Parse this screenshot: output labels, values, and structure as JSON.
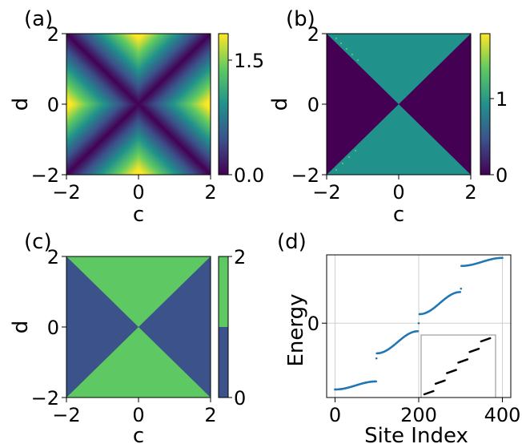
{
  "panel_labels": [
    "(a)",
    "(b)",
    "(c)",
    "(d)"
  ],
  "chart_data": [
    {
      "panel": "(a)",
      "type": "heatmap",
      "xlabel": "c",
      "ylabel": "d",
      "xlim": [
        -2,
        2
      ],
      "ylim": [
        -2,
        2
      ],
      "x_ticks": [
        "−2",
        "0",
        "2"
      ],
      "y_ticks": [
        "−2",
        "0",
        "2"
      ],
      "colormap": "viridis",
      "colorbar": {
        "range": [
          0.0,
          1.85
        ],
        "ticks": [
          0.0,
          1.5
        ],
        "tick_labels": [
          "0.0",
          "1.5"
        ]
      },
      "values_rule": "abs(abs(c) - abs(d))"
    },
    {
      "panel": "(b)",
      "type": "heatmap",
      "xlabel": "c",
      "ylabel": "d",
      "xlim": [
        -2,
        2
      ],
      "ylim": [
        -2,
        2
      ],
      "x_ticks": [
        "−2",
        "0",
        "2"
      ],
      "y_ticks": [
        "−2",
        "0",
        "2"
      ],
      "colormap": "viridis",
      "colorbar": {
        "range": [
          0,
          1.85
        ],
        "ticks": [
          0,
          1
        ],
        "tick_labels": [
          "0",
          "1"
        ]
      },
      "regions": [
        {
          "where": "|d| > |c| (top and bottom)",
          "value": 1
        },
        {
          "where": "|c| > |d| (left and right)",
          "value": 0
        }
      ]
    },
    {
      "panel": "(c)",
      "type": "heatmap",
      "xlabel": "c",
      "ylabel": "d",
      "xlim": [
        -2,
        2
      ],
      "ylim": [
        -2,
        2
      ],
      "x_ticks": [
        "−2",
        "0",
        "2"
      ],
      "y_ticks": [
        "−2",
        "0",
        "2"
      ],
      "colorbar": {
        "range": [
          0,
          2
        ],
        "ticks": [
          0,
          2
        ],
        "tick_labels": [
          "0",
          "2"
        ],
        "colors": [
          "#3b528b",
          "#5ec962"
        ]
      },
      "regions": [
        {
          "where": "|d| > |c| (top and bottom)",
          "value": 2
        },
        {
          "where": "|c| > |d| (left and right)",
          "value": 0
        }
      ]
    },
    {
      "panel": "(d)",
      "type": "scatter",
      "xlabel": "Site Index",
      "ylabel": "Energy",
      "xlim": [
        -20,
        420
      ],
      "ylim": [
        -3.7,
        3.4
      ],
      "x_ticks": [
        0,
        200,
        400
      ],
      "y_ticks": [
        0
      ],
      "grid": true,
      "grid_lines": {
        "x": [
          0,
          200,
          400
        ],
        "y": [
          0
        ]
      },
      "color": "#1f77b4",
      "bands": [
        {
          "x": [
            0,
            98
          ],
          "y": [
            -3.3,
            -2.9
          ]
        },
        {
          "x": [
            100,
            198
          ],
          "y": [
            -1.5,
            -0.4
          ]
        },
        {
          "x": [
            202,
            299
          ],
          "y": [
            0.45,
            1.55
          ]
        },
        {
          "x": [
            302,
            400
          ],
          "y": [
            2.85,
            3.25
          ]
        }
      ],
      "isolated_points": [
        {
          "x": 99,
          "y": -1.75
        },
        {
          "x": 200,
          "y": 0.0
        },
        {
          "x": 301,
          "y": 1.72
        }
      ],
      "inset": {
        "placement": "lower-right",
        "color": "#000000",
        "segments": 6
      }
    }
  ]
}
